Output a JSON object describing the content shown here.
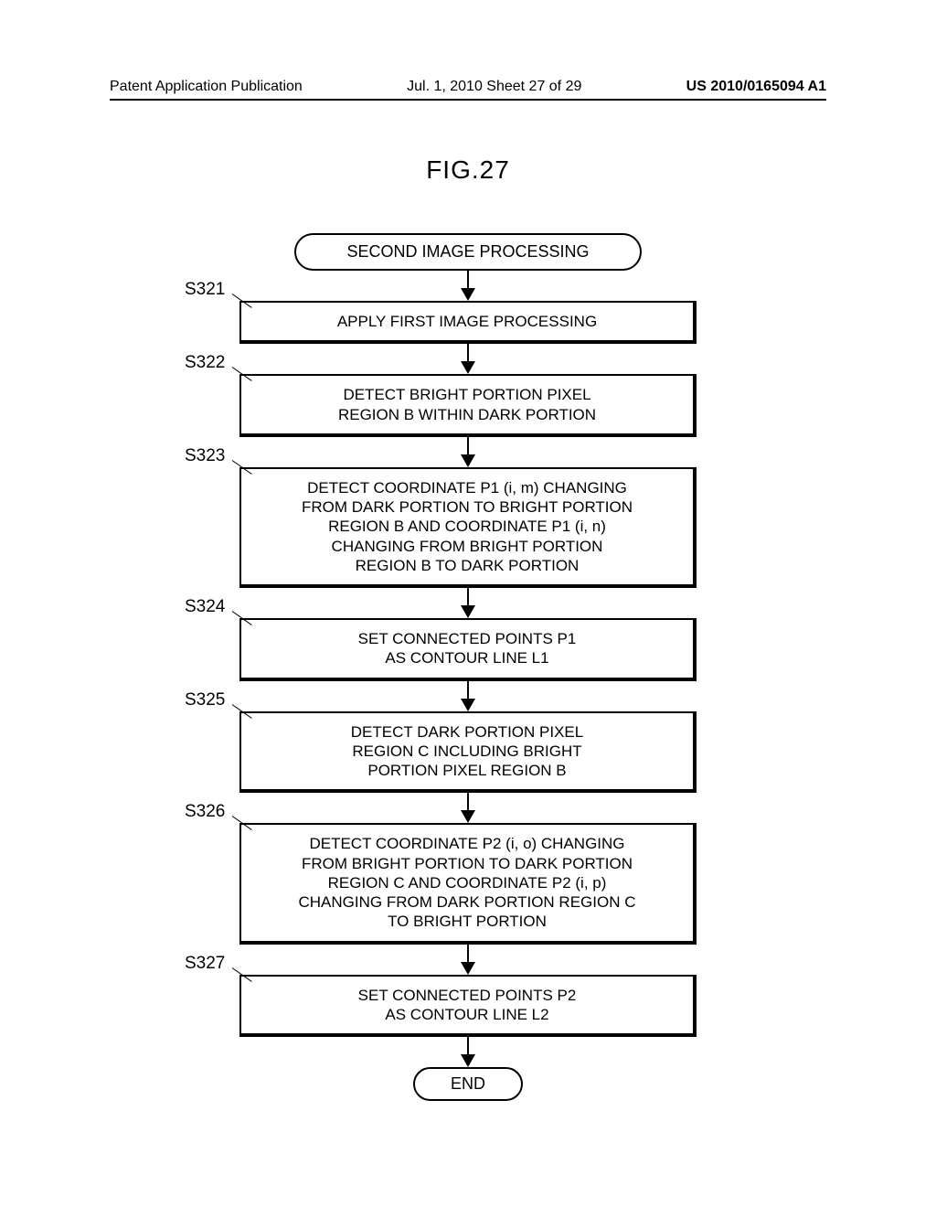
{
  "header": {
    "left": "Patent Application Publication",
    "center": "Jul. 1, 2010  Sheet 27 of 29",
    "right": "US 2010/0165094 A1"
  },
  "figure_title": "FIG.27",
  "flowchart": {
    "type": "flowchart",
    "background_color": "#ffffff",
    "line_color": "#000000",
    "border_width": 2.5,
    "shadow_width": 4,
    "font_size_title": 28,
    "font_size_box": 17,
    "font_size_label": 19,
    "arrow_gap": 34,
    "start": {
      "text": "SECOND IMAGE PROCESSING"
    },
    "end": {
      "text": "END"
    },
    "steps": [
      {
        "label": "S321",
        "text": "APPLY FIRST IMAGE PROCESSING"
      },
      {
        "label": "S322",
        "text": "DETECT BRIGHT PORTION PIXEL\nREGION B WITHIN DARK PORTION"
      },
      {
        "label": "S323",
        "text": "DETECT COORDINATE P1 (i, m) CHANGING\nFROM DARK PORTION TO BRIGHT PORTION\nREGION B AND COORDINATE P1 (i, n)\nCHANGING FROM BRIGHT PORTION\nREGION B TO DARK PORTION"
      },
      {
        "label": "S324",
        "text": "SET CONNECTED POINTS P1\nAS CONTOUR LINE L1"
      },
      {
        "label": "S325",
        "text": "DETECT DARK PORTION PIXEL\nREGION C INCLUDING BRIGHT\nPORTION PIXEL REGION B"
      },
      {
        "label": "S326",
        "text": "DETECT COORDINATE P2 (i, o) CHANGING\nFROM BRIGHT PORTION TO DARK PORTION\nREGION C AND COORDINATE P2 (i, p)\nCHANGING FROM DARK PORTION REGION C\nTO BRIGHT PORTION"
      },
      {
        "label": "S327",
        "text": "SET CONNECTED POINTS P2\nAS CONTOUR LINE L2"
      }
    ]
  }
}
